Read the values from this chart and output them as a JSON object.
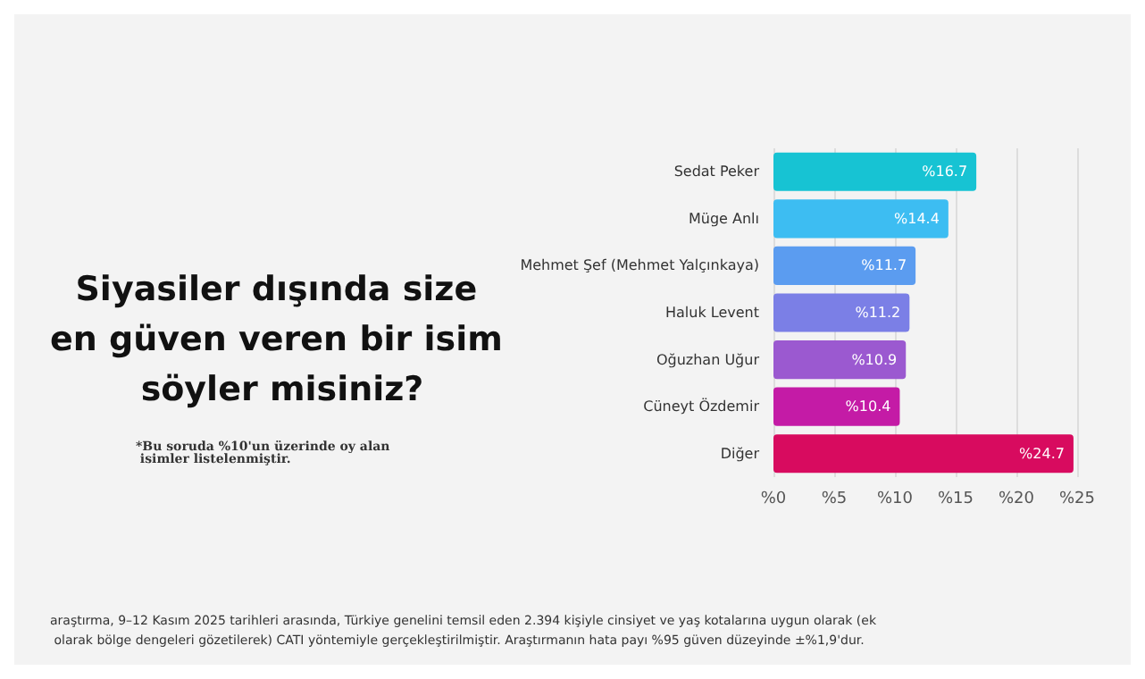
{
  "chart_data": {
    "type": "bar",
    "orientation": "horizontal",
    "title": "Siyasiler dışında size en güven veren bir isim söyler misiniz?",
    "categories": [
      "Sedat Peker",
      "Müge Anlı",
      "Mehmet Şef (Mehmet Yalçınkaya)",
      "Haluk Levent",
      "Oğuzhan Uğur",
      "Cüneyt Özdemir",
      "Diğer"
    ],
    "values": [
      16.7,
      14.4,
      11.7,
      11.2,
      10.9,
      10.4,
      24.7
    ],
    "colors": [
      "#17c3d3",
      "#3dbdf2",
      "#5b9cf0",
      "#7b7fe6",
      "#9b59d0",
      "#c41ba6",
      "#d80b5f"
    ],
    "value_labels": [
      "%16.7",
      "%14.4",
      "%11.7",
      "%11.2",
      "%10.9",
      "%10.4",
      "%24.7"
    ],
    "xlim": [
      0,
      25
    ],
    "xticks": [
      {
        "value": 0,
        "label": "%0"
      },
      {
        "value": 5,
        "label": "%5"
      },
      {
        "value": 10,
        "label": "%10"
      },
      {
        "value": 15,
        "label": "%15"
      },
      {
        "value": 20,
        "label": "%20"
      },
      {
        "value": 25,
        "label": "%25"
      }
    ],
    "grid": "x",
    "annotations": [
      "*Bu soruda %10'un üzerinde oy alan isimler listelenmiştir.",
      "araştırma, 9–12 Kasım 2025 tarihleri arasında, Türkiye genelini temsil eden 2.394 kişiyle cinsiyet ve yaş kotalarına uygun olarak (ek olarak bölge dengeleri gözetilerek) CATI yöntemiyle gerçekleştirilmiştir. Araştırmanın hata payı %95 güven düzeyinde ±%1,9'dur."
    ]
  }
}
